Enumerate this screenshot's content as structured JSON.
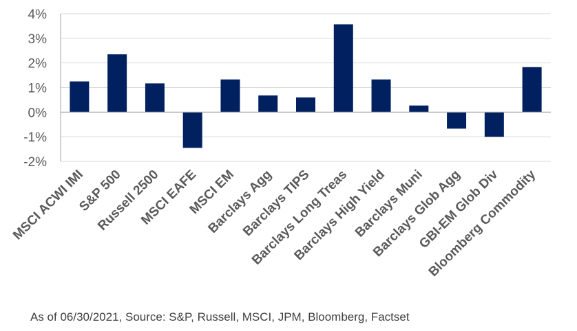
{
  "chart_data": {
    "type": "bar",
    "categories": [
      "MSCI ACWI IMI",
      "S&P 500",
      "Russell 2500",
      "MSCI EAFE",
      "MSCI EM",
      "Barclays Agg",
      "Barclays TIPS",
      "Barclays Long Treas",
      "Barclays High Yield",
      "Barclays Muni",
      "Barclays Glob Agg",
      "GBI-EM Glob Div",
      "Bloomberg Commodity"
    ],
    "values": [
      1.25,
      2.35,
      1.17,
      -1.45,
      1.33,
      0.68,
      0.6,
      3.57,
      1.33,
      0.27,
      -0.67,
      -1.0,
      1.83
    ],
    "ylim": [
      -2,
      4
    ],
    "yticks": [
      -2,
      -1,
      0,
      1,
      2,
      3,
      4
    ],
    "ytick_labels": [
      "-2%",
      "-1%",
      "0%",
      "1%",
      "2%",
      "3%",
      "4%"
    ],
    "grid": true,
    "bar_color": "#002060",
    "grid_color": "#d9d9d9",
    "axis_color": "#a6a6a6"
  },
  "footnote": "As of 06/30/2021, Source: S&P, Russell, MSCI, JPM, Bloomberg, Factset"
}
